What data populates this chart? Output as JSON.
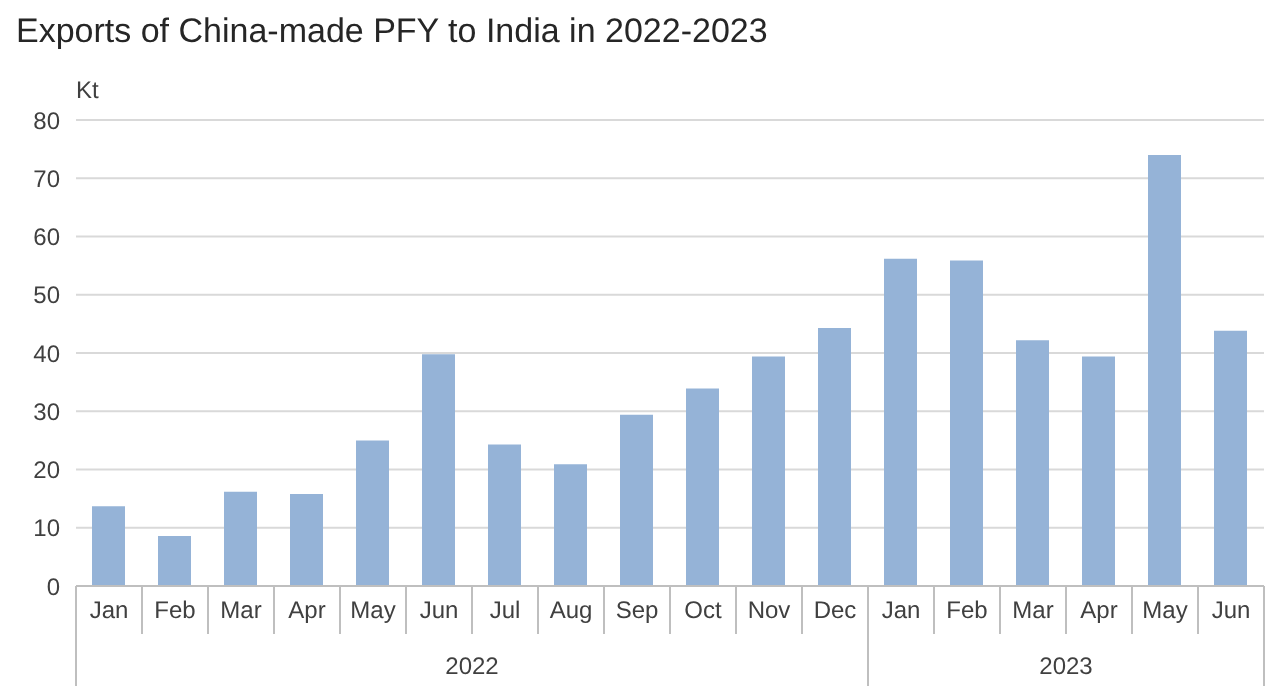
{
  "chart_data": {
    "type": "bar",
    "title": "Exports of China-made PFY to India in 2022-2023",
    "ylabel": "Kt",
    "categories": [
      "Jan",
      "Feb",
      "Mar",
      "Apr",
      "May",
      "Jun",
      "Jul",
      "Aug",
      "Sep",
      "Oct",
      "Nov",
      "Dec",
      "Jan",
      "Feb",
      "Mar",
      "Apr",
      "May",
      "Jun"
    ],
    "values": [
      13.7,
      8.6,
      16.2,
      15.8,
      25,
      39.8,
      24.3,
      20.9,
      29.4,
      33.9,
      39.4,
      44.3,
      56.2,
      55.9,
      42.2,
      39.4,
      74,
      43.8
    ],
    "color": "#95b3d7",
    "ylim": [
      0,
      80
    ],
    "yticks": [
      0,
      10,
      20,
      30,
      40,
      50,
      60,
      70,
      80
    ],
    "grid": "y",
    "annotations": [
      "2022",
      "2023"
    ]
  }
}
